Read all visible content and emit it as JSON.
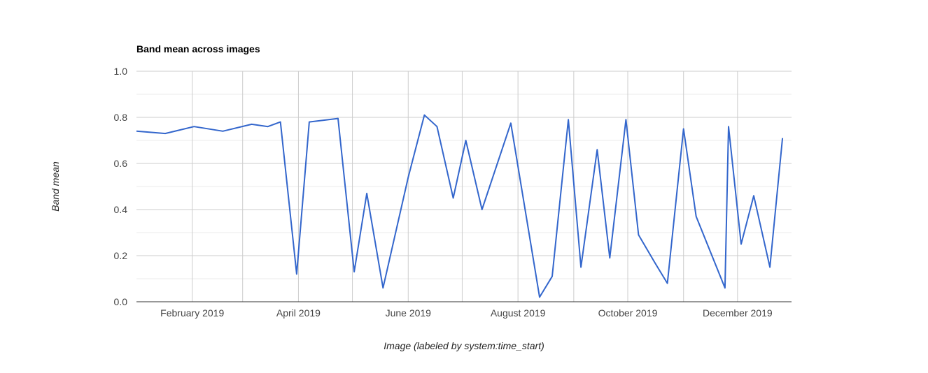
{
  "chart_data": {
    "type": "line",
    "title": "Band mean across images",
    "xlabel": "Image (labeled by system:time_start)",
    "ylabel": "Band mean",
    "ylim": [
      0,
      1.0
    ],
    "xlim": [
      "2019-01-01",
      "2019-12-31"
    ],
    "y_ticks": [
      "0.0",
      "0.2",
      "0.4",
      "0.6",
      "0.8",
      "1.0"
    ],
    "x_ticks": [
      {
        "date": "2019-02-01",
        "label": "February 2019"
      },
      {
        "date": "2019-04-01",
        "label": "April 2019"
      },
      {
        "date": "2019-06-01",
        "label": "June 2019"
      },
      {
        "date": "2019-08-01",
        "label": "August 2019"
      },
      {
        "date": "2019-10-01",
        "label": "October 2019"
      },
      {
        "date": "2019-12-01",
        "label": "December 2019"
      }
    ],
    "grid": true,
    "legend": "none",
    "series": [
      {
        "color": "#3366cc",
        "points": [
          {
            "x": "2019-01-01",
            "y": 0.74
          },
          {
            "x": "2019-01-17",
            "y": 0.73
          },
          {
            "x": "2019-02-02",
            "y": 0.76
          },
          {
            "x": "2019-02-18",
            "y": 0.74
          },
          {
            "x": "2019-03-06",
            "y": 0.77
          },
          {
            "x": "2019-03-15",
            "y": 0.76
          },
          {
            "x": "2019-03-22",
            "y": 0.78
          },
          {
            "x": "2019-03-31",
            "y": 0.12
          },
          {
            "x": "2019-04-07",
            "y": 0.78
          },
          {
            "x": "2019-04-23",
            "y": 0.795
          },
          {
            "x": "2019-05-02",
            "y": 0.13
          },
          {
            "x": "2019-05-09",
            "y": 0.47
          },
          {
            "x": "2019-05-18",
            "y": 0.06
          },
          {
            "x": "2019-06-01",
            "y": 0.54
          },
          {
            "x": "2019-06-10",
            "y": 0.81
          },
          {
            "x": "2019-06-17",
            "y": 0.76
          },
          {
            "x": "2019-06-26",
            "y": 0.45
          },
          {
            "x": "2019-07-03",
            "y": 0.7
          },
          {
            "x": "2019-07-12",
            "y": 0.4
          },
          {
            "x": "2019-07-28",
            "y": 0.775
          },
          {
            "x": "2019-08-13",
            "y": 0.02
          },
          {
            "x": "2019-08-20",
            "y": 0.11
          },
          {
            "x": "2019-08-29",
            "y": 0.79
          },
          {
            "x": "2019-09-05",
            "y": 0.15
          },
          {
            "x": "2019-09-14",
            "y": 0.66
          },
          {
            "x": "2019-09-21",
            "y": 0.19
          },
          {
            "x": "2019-09-30",
            "y": 0.79
          },
          {
            "x": "2019-10-07",
            "y": 0.29
          },
          {
            "x": "2019-10-16",
            "y": 0.17
          },
          {
            "x": "2019-10-23",
            "y": 0.08
          },
          {
            "x": "2019-11-01",
            "y": 0.75
          },
          {
            "x": "2019-11-08",
            "y": 0.37
          },
          {
            "x": "2019-11-24",
            "y": 0.06
          },
          {
            "x": "2019-11-26",
            "y": 0.76
          },
          {
            "x": "2019-12-03",
            "y": 0.25
          },
          {
            "x": "2019-12-10",
            "y": 0.46
          },
          {
            "x": "2019-12-19",
            "y": 0.15
          },
          {
            "x": "2019-12-26",
            "y": 0.71
          }
        ]
      }
    ]
  }
}
